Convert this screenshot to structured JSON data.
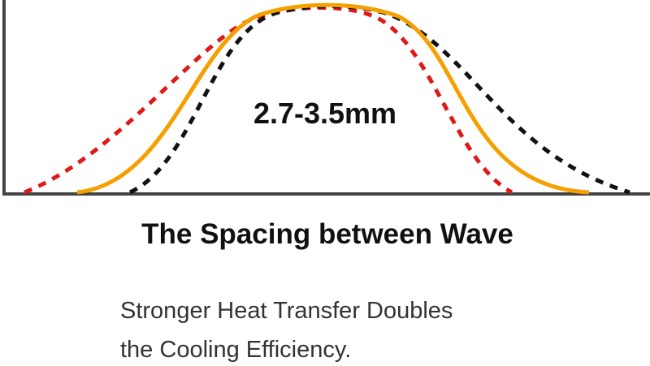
{
  "diagram": {
    "label": "2.7-3.5mm",
    "title": "The Spacing between Wave",
    "description": [
      "Stronger Heat Transfer Doubles",
      "the Cooling Efficiency."
    ]
  }
}
